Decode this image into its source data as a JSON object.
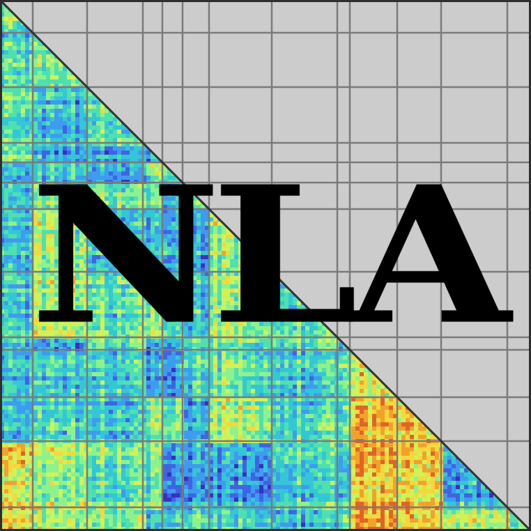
{
  "logo": {
    "text": "NLA"
  },
  "colors": {
    "background": "#cccccc",
    "grid": "#7a7a7a",
    "frame": "#2e2e2e",
    "text": "#000000",
    "heatmap_scale": [
      "#3b2fc0",
      "#3f64e3",
      "#3f9bf0",
      "#33c7d6",
      "#4fe0b0",
      "#8ef28c",
      "#d0f259",
      "#f4d83c",
      "#f2a22c",
      "#e2632a"
    ]
  },
  "icons": {
    "heatmap": "heatmap-triangle-icon",
    "grid": "block-grid-icon"
  }
}
